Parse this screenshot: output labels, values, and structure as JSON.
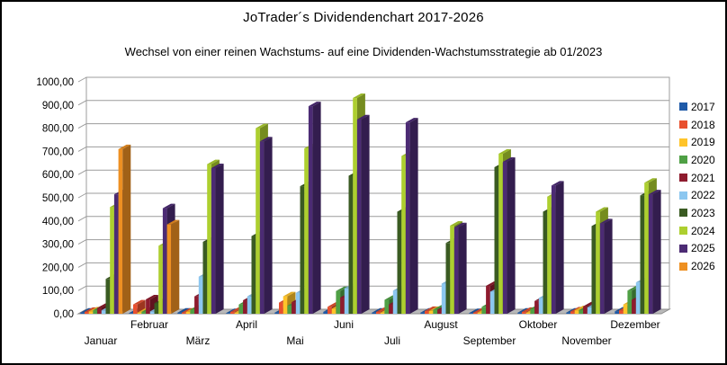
{
  "chart_data": {
    "type": "bar",
    "style": "3d-clustered-column",
    "title": "JoTrader´s Dividendenchart 2017-2026",
    "subtitle": "Wechsel von einer reinen Wachstums- auf eine Dividenden-Wachstumsstrategie ab 01/2023",
    "xlabel": "",
    "ylabel": "",
    "ylim": [
      0,
      1000
    ],
    "ytick_step": 100,
    "ytick_labels": [
      "0,00",
      "100,00",
      "200,00",
      "300,00",
      "400,00",
      "500,00",
      "600,00",
      "700,00",
      "800,00",
      "900,00",
      "1000,00"
    ],
    "grid": true,
    "legend_position": "right",
    "number_format": "de-DE",
    "colors": {
      "wall": "#FFFFFF",
      "floor": "#B9B9B9",
      "gridline": "#9C9C9C",
      "axis": "#8C8C8C",
      "text": "#000000"
    },
    "categories": [
      "Januar",
      "Februar",
      "März",
      "April",
      "Mai",
      "Juni",
      "Juli",
      "August",
      "September",
      "Oktober",
      "November",
      "Dezember"
    ],
    "series": [
      {
        "name": "2017",
        "color": "#1F5AA8",
        "values": [
          5,
          3,
          5,
          3,
          5,
          8,
          5,
          5,
          3,
          5,
          5,
          10
        ]
      },
      {
        "name": "2018",
        "color": "#E8502E",
        "values": [
          8,
          40,
          5,
          8,
          48,
          30,
          8,
          12,
          5,
          8,
          10,
          15
        ]
      },
      {
        "name": "2019",
        "color": "#FFC42A",
        "values": [
          10,
          5,
          8,
          5,
          75,
          22,
          5,
          12,
          5,
          5,
          15,
          40
        ]
      },
      {
        "name": "2020",
        "color": "#4FA045",
        "values": [
          15,
          8,
          18,
          40,
          35,
          98,
          60,
          18,
          30,
          22,
          15,
          100
        ]
      },
      {
        "name": "2021",
        "color": "#8E1B2E",
        "values": [
          25,
          62,
          75,
          58,
          50,
          70,
          40,
          18,
          120,
          55,
          32,
          60
        ]
      },
      {
        "name": "2022",
        "color": "#8CC7F0",
        "values": [
          15,
          10,
          160,
          75,
          90,
          110,
          100,
          130,
          95,
          68,
          28,
          135
        ]
      },
      {
        "name": "2023",
        "color": "#3A5B22",
        "values": [
          150,
          45,
          310,
          335,
          550,
          595,
          440,
          305,
          632,
          440,
          378,
          510
        ]
      },
      {
        "name": "2024",
        "color": "#ADCF2F",
        "values": [
          460,
          293,
          645,
          800,
          713,
          930,
          680,
          380,
          690,
          505,
          440,
          565
        ]
      },
      {
        "name": "2025",
        "color": "#4C2B74",
        "values": [
          515,
          455,
          628,
          743,
          895,
          838,
          825,
          373,
          655,
          553,
          390,
          515
        ]
      },
      {
        "name": "2026",
        "color": "#EE9022",
        "values": [
          710,
          385,
          0,
          0,
          0,
          0,
          0,
          0,
          0,
          0,
          0,
          0
        ]
      }
    ]
  }
}
